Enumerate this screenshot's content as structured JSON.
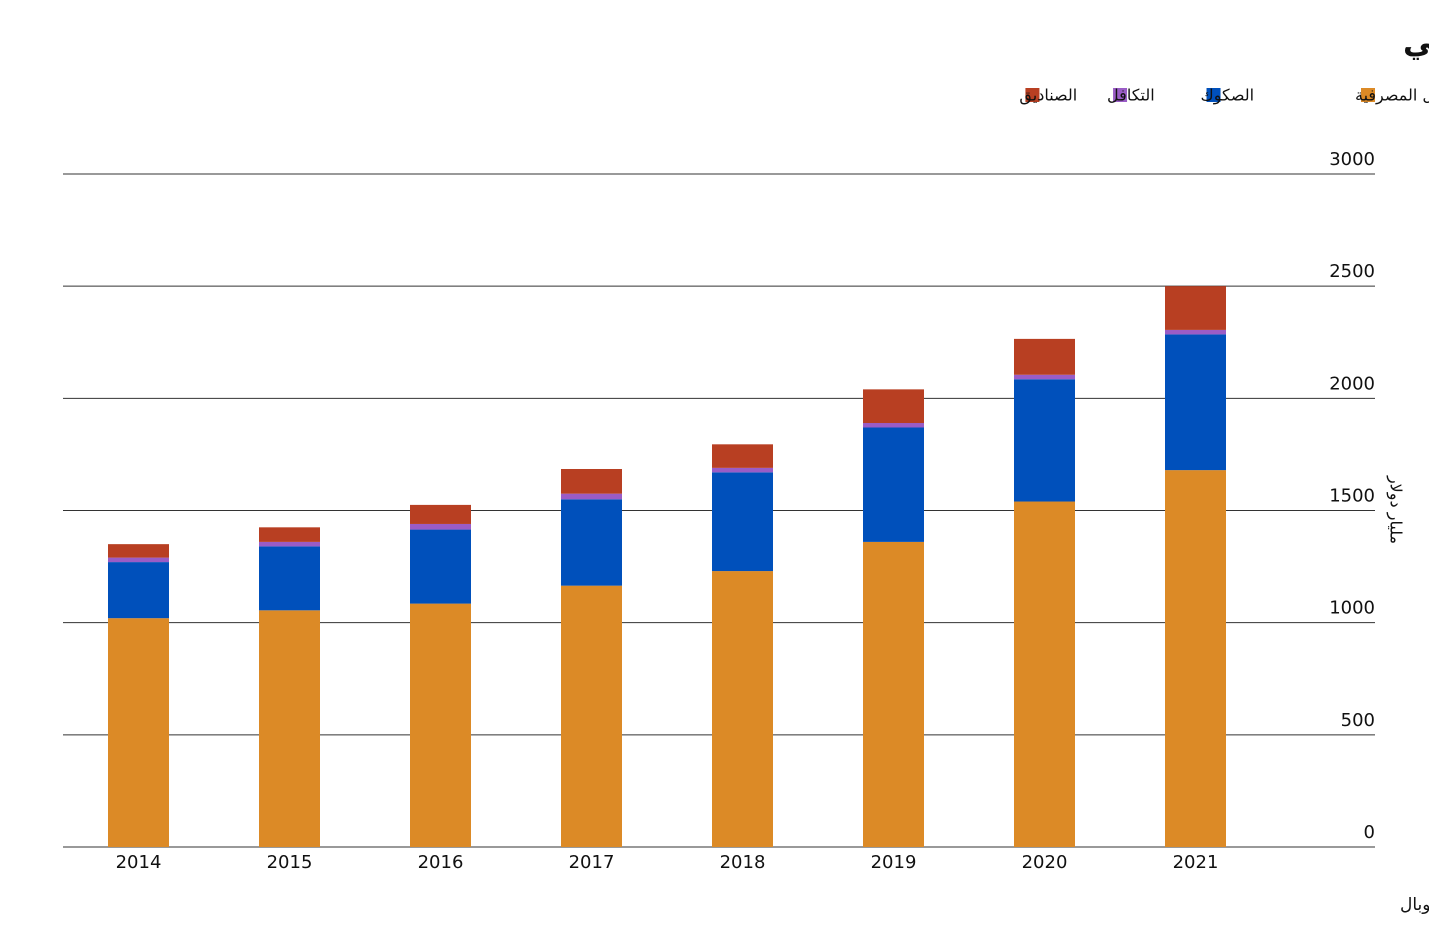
{
  "chart_data": {
    "type": "stacked-bar",
    "title": "القيمة السوقية لقطاع التمويل الإسلامي وصلت إلى 2.5 تريليون دولار أميركي",
    "y_axis_label": "مليار دولار",
    "source": "المصدر: البنوك المركزية، المجلس العام للبنوك والمؤسسات المالية الإسلامية، إيكون، إس آند بي غلوبال",
    "categories": [
      "2014",
      "2015",
      "2016",
      "2017",
      "2018",
      "2019",
      "2020",
      "2021"
    ],
    "series": [
      {
        "name": "الأصول المصرفية",
        "color": "#dc8a26",
        "values": [
          1020,
          1055,
          1085,
          1165,
          1230,
          1360,
          1540,
          1680
        ]
      },
      {
        "name": "الصكوك",
        "color": "#0050bb",
        "values": [
          250,
          285,
          330,
          385,
          440,
          510,
          545,
          605
        ]
      },
      {
        "name": "التكافل",
        "color": "#9a5cc6",
        "values": [
          20,
          20,
          25,
          25,
          20,
          20,
          20,
          20
        ]
      },
      {
        "name": "الصناديق",
        "color": "#b83f22",
        "values": [
          60,
          65,
          85,
          110,
          105,
          150,
          160,
          195
        ]
      }
    ],
    "ylim": [
      0,
      3000
    ],
    "yticks": [
      0,
      500,
      1000,
      1500,
      2000,
      2500,
      3000
    ],
    "grid": true
  }
}
